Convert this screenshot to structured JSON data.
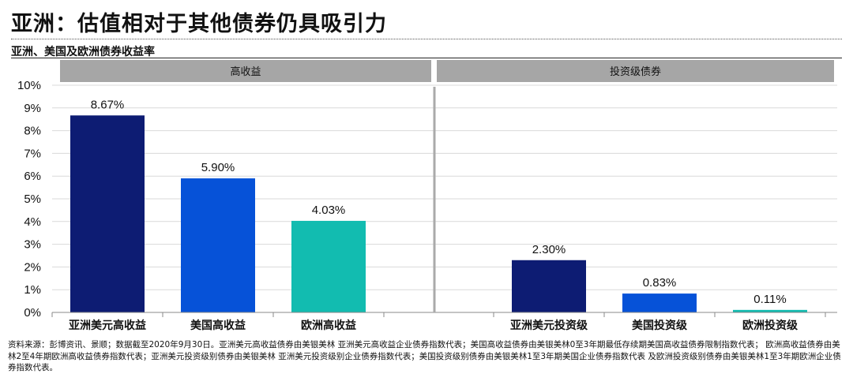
{
  "header": {
    "title": "亚洲：估值相对于其他债券仍具吸引力",
    "subtitle": "亚洲、美国及欧洲债券收益率"
  },
  "footnote": "资料来源：彭博资讯、景顺；数据截至2020年9月30日。亚洲美元高收益债券由美银美林 亚洲美元高收益企业债券指数代表；美国高收益债券由美银美林0至3年期最低存续期美国高收益债券限制指数代表； 欧洲高收益债券由美林2至4年期欧洲高收益债券指数代表；亚洲美元投资级别债券由美银美林 亚洲美元投资级别企业债券指数代表；美国投资级别债券由美银美林1至3年期美国企业债券指数代表 及欧洲投资级别债券由美银美林1至3年期欧洲企业债券指数代表。",
  "chart_data": {
    "type": "bar",
    "ylim": [
      0,
      10
    ],
    "y_ticks": [
      "0%",
      "1%",
      "2%",
      "3%",
      "4%",
      "5%",
      "6%",
      "7%",
      "8%",
      "9%",
      "10%"
    ],
    "grid": true,
    "panels": [
      {
        "header": "高收益",
        "categories": [
          "亚洲美元高收益",
          "美国高收益",
          "欧洲高收益"
        ],
        "values": [
          8.67,
          5.9,
          4.03
        ],
        "labels": [
          "8.67%",
          "5.90%",
          "4.03%"
        ],
        "colors": [
          "#0d1c73",
          "#0652d8",
          "#12bcb0"
        ]
      },
      {
        "header": "投资级债券",
        "categories": [
          "亚洲美元投资级",
          "美国投资级",
          "欧洲投资级"
        ],
        "values": [
          2.3,
          0.83,
          0.11
        ],
        "labels": [
          "2.30%",
          "0.83%",
          "0.11%"
        ],
        "colors": [
          "#0d1c73",
          "#0652d8",
          "#12bcb0"
        ]
      }
    ]
  }
}
